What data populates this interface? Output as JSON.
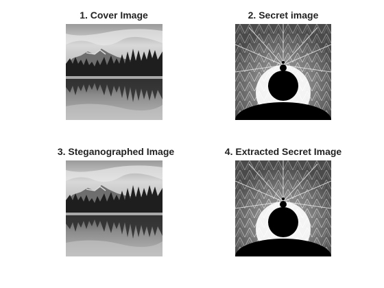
{
  "figure": {
    "panels": [
      {
        "title": "1. Cover Image",
        "icon": "lake-landscape-image"
      },
      {
        "title": "2. Secret image",
        "icon": "mandelbrot-fractal-image"
      },
      {
        "title": "3. Steganographed Image",
        "icon": "lake-landscape-image"
      },
      {
        "title": "4. Extracted Secret Image",
        "icon": "mandelbrot-fractal-image"
      }
    ],
    "colors": {
      "background": "#ffffff",
      "title_text": "#222222"
    }
  }
}
